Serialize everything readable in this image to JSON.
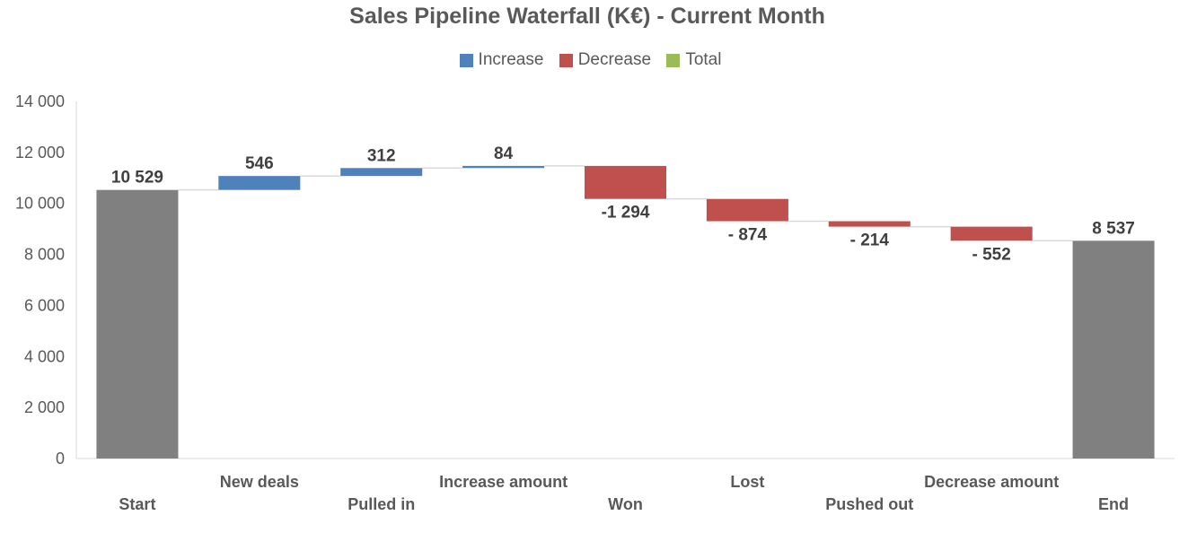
{
  "chart_data": {
    "type": "waterfall",
    "title": "Sales Pipeline Waterfall (K€) - Current Month",
    "legend": {
      "position": "top",
      "entries": [
        {
          "key": "increase",
          "label": "Increase"
        },
        {
          "key": "decrease",
          "label": "Decrease"
        },
        {
          "key": "total",
          "label": "Total"
        }
      ]
    },
    "colors": {
      "increase": "#4f81bd",
      "decrease": "#c0504d",
      "total": "#808080",
      "total_legend": "#9bbb59",
      "connector": "#d9d9d9",
      "axis": "#d9d9d9"
    },
    "categories": [
      "Start",
      "New deals",
      "Pulled in",
      "Increase amount",
      "Won",
      "Lost",
      "Pushed out",
      "Decrease amount",
      "End"
    ],
    "steps": [
      {
        "category": "Start",
        "kind": "total",
        "value": 10529,
        "label": "10 529"
      },
      {
        "category": "New deals",
        "kind": "increase",
        "value": 546,
        "label": "546"
      },
      {
        "category": "Pulled in",
        "kind": "increase",
        "value": 312,
        "label": "312"
      },
      {
        "category": "Increase amount",
        "kind": "increase",
        "value": 84,
        "label": "84"
      },
      {
        "category": "Won",
        "kind": "decrease",
        "value": -1294,
        "label": "-1 294"
      },
      {
        "category": "Lost",
        "kind": "decrease",
        "value": -874,
        "label": "- 874"
      },
      {
        "category": "Pushed out",
        "kind": "decrease",
        "value": -214,
        "label": "- 214"
      },
      {
        "category": "Decrease amount",
        "kind": "decrease",
        "value": -552,
        "label": "- 552"
      },
      {
        "category": "End",
        "kind": "total",
        "value": 8537,
        "label": "8 537"
      }
    ],
    "y_axis": {
      "min": 0,
      "max": 14000,
      "ticks": [
        0,
        2000,
        4000,
        6000,
        8000,
        10000,
        12000,
        14000
      ],
      "tick_labels": [
        "0",
        "2 000",
        "4 000",
        "6 000",
        "8 000",
        "10 000",
        "12 000",
        "14 000"
      ]
    },
    "xlabel": "",
    "ylabel": "",
    "grid": false
  }
}
